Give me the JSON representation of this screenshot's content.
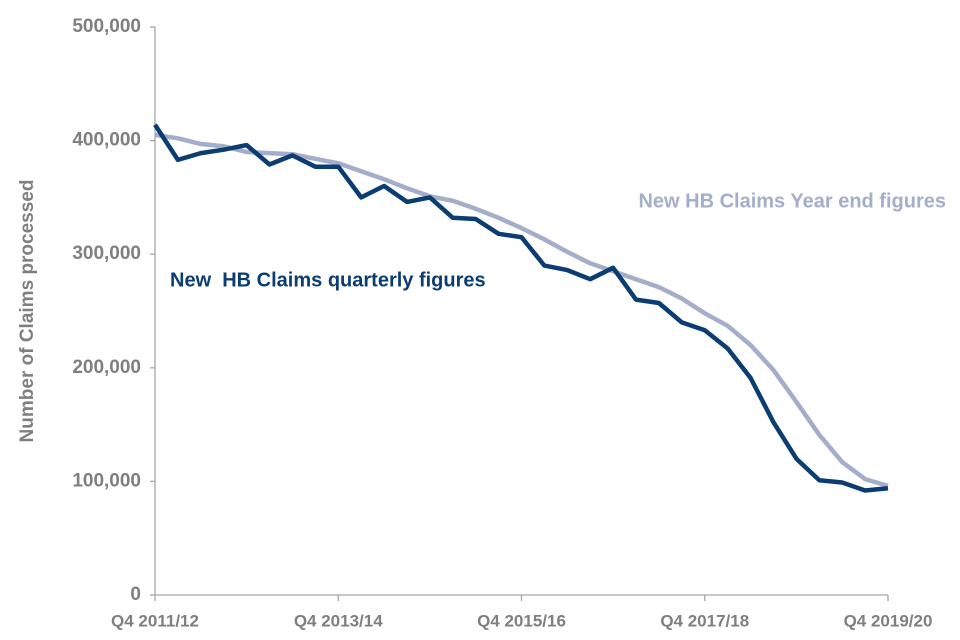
{
  "chart_data": {
    "type": "line",
    "y_label": "Number of Claims processed",
    "categories": [
      "Q4 2011/12",
      null,
      null,
      null,
      null,
      null,
      null,
      null,
      "Q4 2013/14",
      null,
      null,
      null,
      null,
      null,
      null,
      null,
      "Q4 2015/16",
      null,
      null,
      null,
      null,
      null,
      null,
      null,
      "Q4 2017/18",
      null,
      null,
      null,
      null,
      null,
      null,
      null,
      "Q4 2019/20"
    ],
    "series": [
      {
        "name": "New  HB Claims quarterly figures",
        "color": "#0b3d73",
        "values": [
          414000,
          383000,
          389000,
          392000,
          396000,
          379000,
          387000,
          377000,
          377000,
          350000,
          360000,
          346000,
          350000,
          332000,
          331000,
          318000,
          315000,
          290000,
          286000,
          278000,
          288000,
          260000,
          257000,
          240000,
          233000,
          217000,
          191000,
          152000,
          120000,
          101000,
          99000,
          92000,
          94000
        ]
      },
      {
        "name": "New HB Claims Year end figures",
        "color": "#a4adc9",
        "values": [
          405000,
          402000,
          397000,
          395000,
          390000,
          389000,
          388000,
          384000,
          380000,
          373000,
          366000,
          358000,
          351000,
          347000,
          340000,
          332000,
          323000,
          313000,
          302000,
          292000,
          285000,
          278000,
          271000,
          261000,
          248000,
          237000,
          220000,
          198000,
          170000,
          141000,
          117000,
          102000,
          96000
        ]
      }
    ],
    "ylim": [
      0,
      500000
    ],
    "yticks": [
      0,
      {
        "value": 100000,
        "label": "100,000"
      },
      {
        "value": 200000,
        "label": "200,000"
      },
      {
        "value": 300000,
        "label": "300,000"
      },
      {
        "value": 400000,
        "label": "400,000"
      },
      {
        "value": 500000,
        "label": "500,000"
      }
    ],
    "grid": false
  }
}
